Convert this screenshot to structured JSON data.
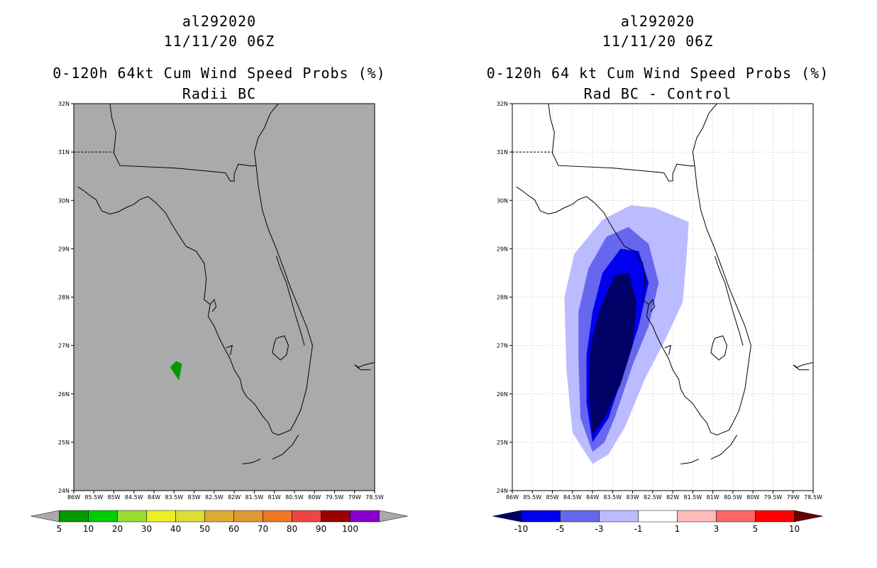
{
  "panels": [
    {
      "storm_id": "al292020",
      "datetime": "11/11/20 06Z",
      "product": "0-120h 64kt Cum Wind Speed Probs (%)",
      "subtitle": "Radii BC",
      "map_background": "#aaaaaa",
      "colorbar": {
        "labels": [
          "5",
          "10",
          "20",
          "30",
          "40",
          "50",
          "60",
          "70",
          "80",
          "90",
          "100"
        ],
        "colors": [
          "#009900",
          "#00cc00",
          "#99dd33",
          "#eeee22",
          "#dddd33",
          "#ddaa33",
          "#dd9933",
          "#ee7722",
          "#ee4444",
          "#990000",
          "#8800cc"
        ]
      }
    },
    {
      "storm_id": "al292020",
      "datetime": "11/11/20 06Z",
      "product": "0-120h 64 kt Cum Wind Speed Probs (%)",
      "subtitle": "Rad BC - Control",
      "map_background": "#ffffff",
      "colorbar": {
        "labels": [
          "-10",
          "-5",
          "-3",
          "-1",
          "1",
          "3",
          "5",
          "10"
        ],
        "colors": [
          "#0000ee",
          "#6666ee",
          "#bbbbff",
          "#ffffff",
          "#ffbbbb",
          "#ff6666",
          "#ff0000"
        ],
        "low_end_color": "#000066",
        "high_end_color": "#660000"
      }
    }
  ],
  "axes": {
    "lat_labels": [
      "32N",
      "31N",
      "30N",
      "29N",
      "28N",
      "27N",
      "26N",
      "25N",
      "24N"
    ],
    "lon_labels": [
      "86W",
      "85.5W",
      "85W",
      "84.5W",
      "84W",
      "83.5W",
      "83W",
      "82.5W",
      "82W",
      "81.5W",
      "81W",
      "80.5W",
      "80W",
      "79.5W",
      "79W",
      "78.5W"
    ]
  },
  "fields": {
    "green_patch_color": "#009900",
    "diff_shades": [
      "#bbbbff",
      "#6666ee",
      "#0000ee",
      "#000066"
    ]
  }
}
